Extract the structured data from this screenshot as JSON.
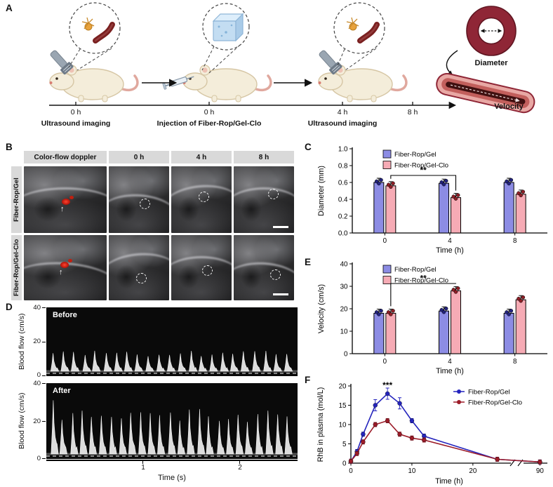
{
  "panel_a": {
    "label": "A",
    "timeline": [
      {
        "time": "0 h",
        "caption": "Ultrasound imaging"
      },
      {
        "time": "0 h",
        "caption": "Injection of Fiber-Rop/Gel-Clo"
      },
      {
        "time": "4 h",
        "caption": "Ultrasound imaging"
      },
      {
        "time": "8 h",
        "caption": ""
      }
    ],
    "diameter_label": "Diameter",
    "velocity_label": "Velocity"
  },
  "panel_b": {
    "label": "B",
    "col_headers": [
      "Color-flow doppler",
      "0 h",
      "4 h",
      "8 h"
    ],
    "row_labels": [
      "Fiber-Rop/Gel",
      "Fiber-Rop/Gel-Clo"
    ]
  },
  "panel_c": {
    "label": "C"
  },
  "panel_d": {
    "label": "D",
    "ylabel": "Blood flow (cm/s)",
    "xlabel": "Time (s)",
    "yticks": [
      "40",
      "20",
      "0"
    ],
    "xticks": [
      "1",
      "2"
    ]
  },
  "panel_e": {
    "label": "E"
  },
  "panel_f": {
    "label": "F"
  },
  "chart_data": [
    {
      "id": "C",
      "type": "bar",
      "categories": [
        "0",
        "4",
        "8"
      ],
      "series": [
        {
          "name": "Fiber-Rop/Gel",
          "color": "#8c8ce4",
          "dot": "#23237e",
          "values": [
            0.6,
            0.59,
            0.6
          ]
        },
        {
          "name": "Fiber-Rop/Gel-Clo",
          "color": "#f6abb5",
          "dot": "#8e1f26",
          "values": [
            0.56,
            0.42,
            0.46
          ]
        }
      ],
      "xlabel": "Time (h)",
      "ylabel": "Diameter (mm)",
      "ylim": [
        0,
        1.0
      ],
      "yticks": [
        "0.0",
        "0.2",
        "0.4",
        "0.6",
        "0.8",
        "1.0"
      ],
      "legend_position": "top-left-inside",
      "significance": {
        "label": "**",
        "series": 1,
        "from_cat": 0,
        "to_cat": 1
      }
    },
    {
      "id": "E",
      "type": "bar",
      "categories": [
        "0",
        "4",
        "8"
      ],
      "series": [
        {
          "name": "Fiber-Rop/Gel",
          "color": "#8c8ce4",
          "dot": "#23237e",
          "values": [
            18,
            19,
            18
          ]
        },
        {
          "name": "Fiber-Rop/Gel-Clo",
          "color": "#f6abb5",
          "dot": "#8e1f26",
          "values": [
            18,
            28,
            24
          ]
        }
      ],
      "xlabel": "Time (h)",
      "ylabel": "Velocity (cm/s)",
      "ylim": [
        0,
        40
      ],
      "yticks": [
        "0",
        "10",
        "20",
        "30",
        "40"
      ],
      "legend_position": "top-left-inside",
      "significance": {
        "label": "**",
        "series": 1,
        "from_cat": 0,
        "to_cat": 1
      }
    },
    {
      "id": "F",
      "type": "line",
      "x": [
        0,
        1,
        2,
        4,
        6,
        8,
        10,
        12,
        24,
        90
      ],
      "series": [
        {
          "name": "Fiber-Rop/Gel",
          "color": "#2424bd",
          "values": [
            0.5,
            3.0,
            7.5,
            15.0,
            18.0,
            15.5,
            11.0,
            7.0,
            1.0,
            0.3
          ]
        },
        {
          "name": "Fiber-Rop/Gel-Clo",
          "color": "#9c1b28",
          "values": [
            0.5,
            2.5,
            5.5,
            10.0,
            11.0,
            7.5,
            6.5,
            6.0,
            1.0,
            0.3
          ]
        }
      ],
      "xlabel": "Time (h)",
      "ylabel": "RhB in plasma (mol/L)",
      "ylim": [
        0,
        20
      ],
      "yticks": [
        "0",
        "5",
        "10",
        "15",
        "20"
      ],
      "xticks": [
        0,
        10,
        20,
        90
      ],
      "axis_break_x": [
        26,
        86
      ],
      "legend_position": "top-right-inside",
      "significance": {
        "label": "***",
        "at_x": 6,
        "series": 0
      }
    },
    {
      "id": "D",
      "type": "area",
      "subpanels": [
        {
          "label": "Before",
          "peak_cm_s": 13,
          "beats": 23
        },
        {
          "label": "After",
          "peak_cm_s": 25,
          "beats": 25
        }
      ],
      "ylabel": "Blood flow (cm/s)",
      "xlabel": "Time (s)",
      "ylim": [
        0,
        40
      ],
      "yticks": [
        0,
        20,
        40
      ],
      "xticks": [
        1,
        2
      ],
      "duration_s": 2.6
    }
  ]
}
